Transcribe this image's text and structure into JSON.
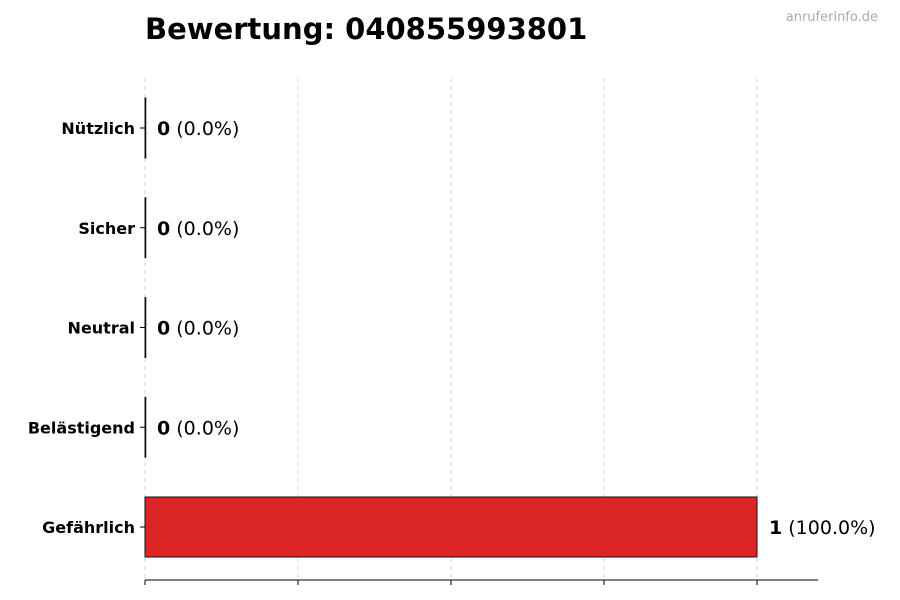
{
  "title": "Bewertung: 040855993801",
  "watermark": "anruferinfo.de",
  "chart_data": {
    "type": "bar",
    "orientation": "horizontal",
    "title": "Bewertung: 040855993801",
    "categories": [
      "Nützlich",
      "Sicher",
      "Neutral",
      "Belästigend",
      "Gefährlich"
    ],
    "values": [
      0,
      0,
      0,
      0,
      1
    ],
    "labels": [
      "(0.0%)",
      "(0.0%)",
      "(0.0%)",
      "(0.0%)",
      "(100.0%)"
    ],
    "colors": [
      "#dc2626",
      "#dc2626",
      "#dc2626",
      "#dc2626",
      "#dc2626"
    ],
    "xlim": [
      0,
      1.1
    ],
    "xticks": [
      0,
      0.25,
      0.5,
      0.75,
      1.0
    ],
    "xtick_labels_shown": false,
    "grid": "x, dashed",
    "xlabel": "",
    "ylabel": ""
  }
}
